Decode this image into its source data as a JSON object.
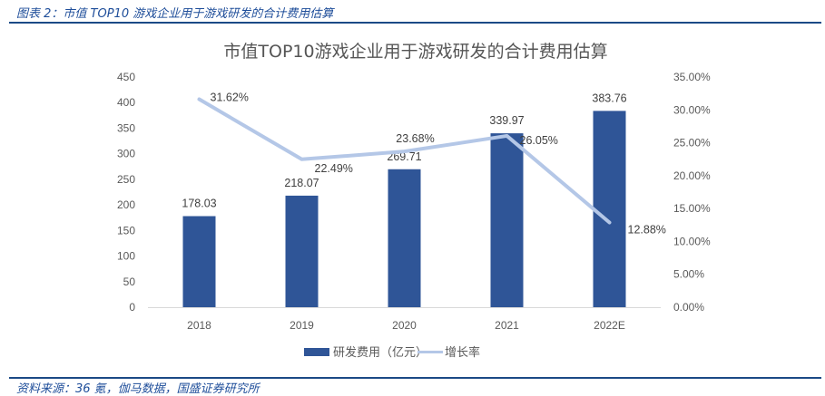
{
  "caption": "图表 2：市值 TOP10 游戏企业用于游戏研发的合计费用估算",
  "source": "资料来源：36 氪，伽马数据，国盛证券研究所",
  "colors": {
    "bar": "#2f5597",
    "line": "#b4c7e7",
    "rule": "#1b4a86",
    "caption_text": "#1f4e9a",
    "axis_line": "#d9d9d9"
  },
  "chart_data": {
    "type": "bar",
    "title": "市值TOP10游戏企业用于游戏研发的合计费用估算",
    "categories": [
      "2018",
      "2019",
      "2020",
      "2021",
      "2022E"
    ],
    "series": [
      {
        "name": "研发费用（亿元）",
        "type": "bar",
        "axis": "left",
        "values": [
          178.03,
          218.07,
          269.71,
          339.97,
          383.76
        ],
        "labels": [
          "178.03",
          "218.07",
          "269.71",
          "339.97",
          "383.76"
        ]
      },
      {
        "name": "增长率",
        "type": "line",
        "axis": "right",
        "values": [
          31.62,
          22.49,
          23.68,
          26.05,
          12.88
        ],
        "labels": [
          "31.62%",
          "22.49%",
          "23.68%",
          "26.05%",
          "12.88%"
        ]
      }
    ],
    "y_left": {
      "ylim": [
        0,
        450
      ],
      "ticks": [
        0,
        50,
        100,
        150,
        200,
        250,
        300,
        350,
        400,
        450
      ],
      "tick_labels": [
        "0",
        "50",
        "100",
        "150",
        "200",
        "250",
        "300",
        "350",
        "400",
        "450"
      ]
    },
    "y_right": {
      "ylim": [
        0,
        35
      ],
      "ticks": [
        0,
        5,
        10,
        15,
        20,
        25,
        30,
        35
      ],
      "tick_labels": [
        "0.00%",
        "5.00%",
        "10.00%",
        "15.00%",
        "20.00%",
        "25.00%",
        "30.00%",
        "35.00%"
      ]
    },
    "xlabel": "",
    "grid": false,
    "legend": {
      "position": "bottom",
      "entries": [
        "研发费用（亿元）",
        "增长率"
      ]
    }
  }
}
